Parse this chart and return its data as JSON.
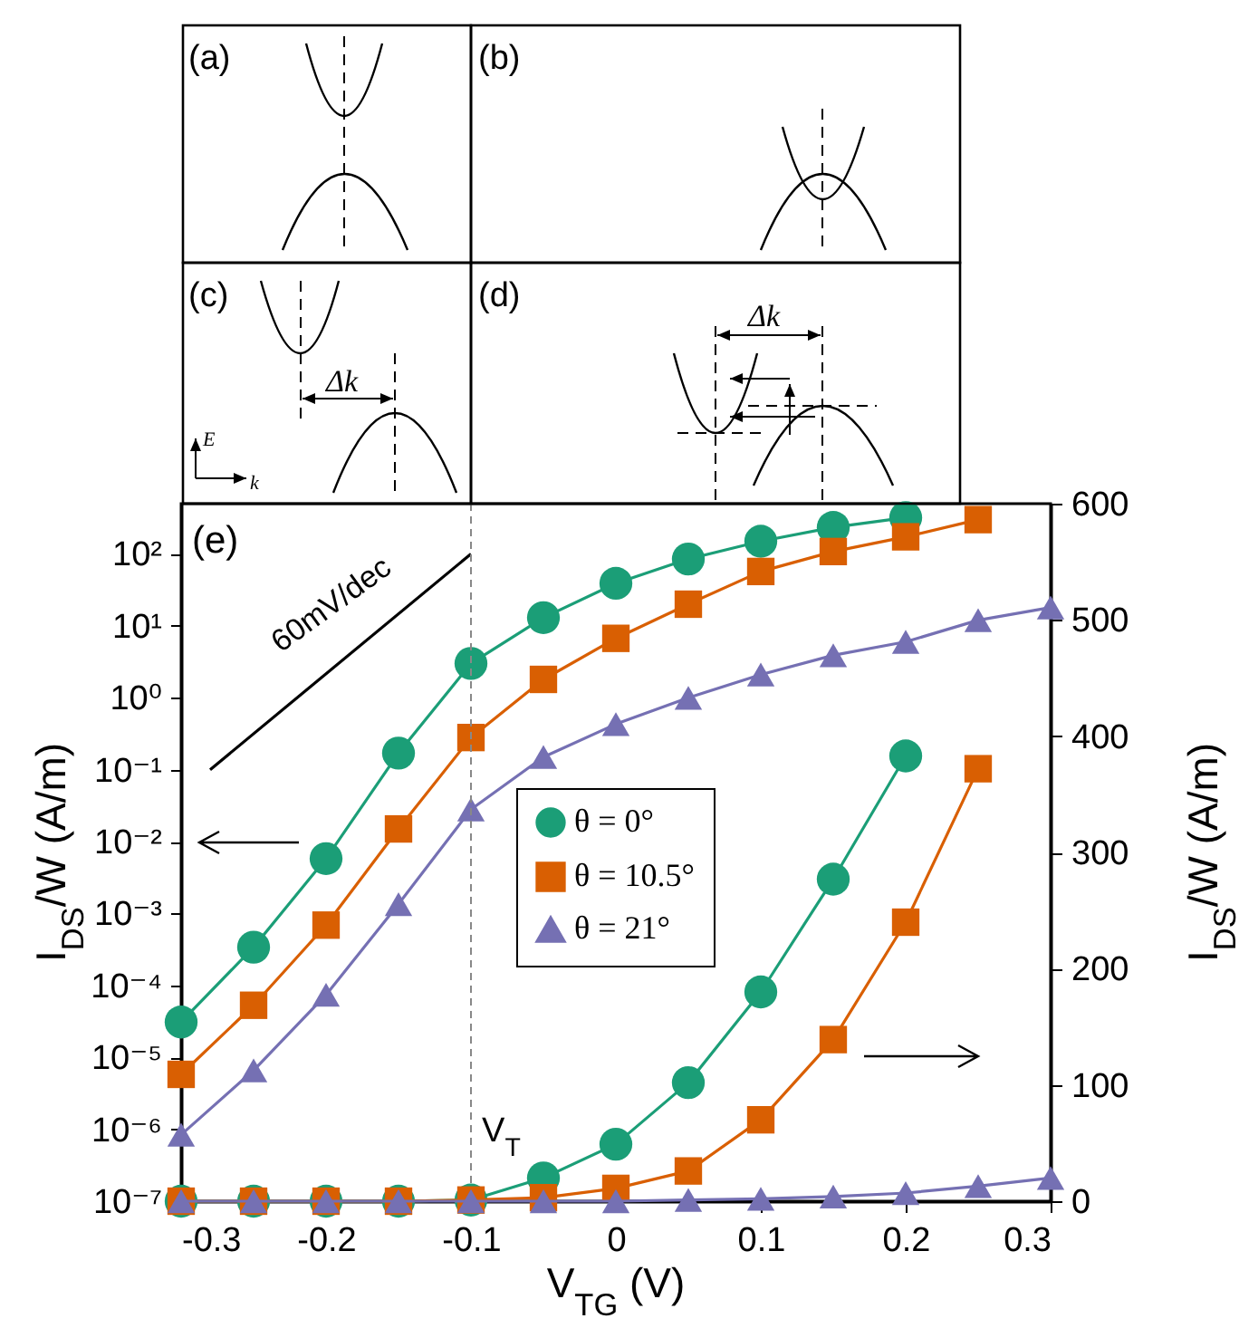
{
  "chart_data": {
    "type": "line",
    "xlabel": "V$_{TG}$ (V)",
    "ylabel": "I$_{DS}$/W (A/m)",
    "y2label": "I$_{DS}$/W (A/m)",
    "x": [
      -0.3,
      -0.25,
      -0.2,
      -0.15,
      -0.1,
      -0.05,
      0,
      0.05,
      0.1,
      0.15,
      0.2,
      0.25,
      0.3
    ],
    "xlim": [
      -0.3,
      0.3
    ],
    "xticks": [
      -0.3,
      -0.2,
      -0.1,
      0,
      0.1,
      0.2,
      0.3
    ],
    "log": "y",
    "ylim": [
      1e-07,
      500
    ],
    "yticks": [
      {
        "value": 1e-07,
        "label": "10⁻⁷"
      },
      {
        "value": 1e-06,
        "label": "10⁻⁶"
      },
      {
        "value": 1e-05,
        "label": "10⁻⁵"
      },
      {
        "value": 0.0001,
        "label": "10⁻⁴"
      },
      {
        "value": 0.001,
        "label": "10⁻³"
      },
      {
        "value": 0.01,
        "label": "10⁻²"
      },
      {
        "value": 0.1,
        "label": "10⁻¹"
      },
      {
        "value": 1,
        "label": "10⁰"
      },
      {
        "value": 10,
        "label": "10¹"
      },
      {
        "value": 100,
        "label": "10²"
      }
    ],
    "y2lim": [
      0,
      600
    ],
    "y2ticks": [
      0,
      100,
      200,
      300,
      400,
      500,
      600
    ],
    "legend": "center",
    "series": [
      {
        "name": "θ = 0°",
        "color": "#1b9e77",
        "marker": "circle",
        "values": [
          3.1e-05,
          0.00034,
          0.0058,
          0.17,
          3.0,
          13,
          39,
          85,
          150,
          234,
          320,
          null,
          null
        ]
      },
      {
        "name": "θ = 10.5°",
        "color": "#d95f02",
        "marker": "square",
        "values": [
          5.8e-06,
          5.3e-05,
          0.00069,
          0.015,
          0.28,
          1.8,
          6.7,
          20,
          57,
          108,
          173,
          300,
          null
        ]
      },
      {
        "name": "θ = 21°",
        "color": "#7570b3",
        "marker": "triangle",
        "values": [
          8.4e-07,
          6.6e-06,
          7.4e-05,
          0.00135,
          0.028,
          0.15,
          0.43,
          1.0,
          2.1,
          3.9,
          6,
          12,
          18
        ]
      },
      {
        "color": "#1b9e77",
        "marker": "circle",
        "axis": "y2",
        "values": [
          0,
          0,
          0,
          0,
          1,
          20,
          49,
          102,
          180,
          277,
          383,
          null,
          null
        ]
      },
      {
        "color": "#d95f02",
        "marker": "square",
        "axis": "y2",
        "values": [
          0,
          0,
          0,
          0,
          1,
          3,
          11,
          26,
          70,
          139,
          240,
          372,
          null
        ]
      },
      {
        "color": "#7570b3",
        "marker": "triangle",
        "axis": "y2",
        "values": [
          0,
          0,
          0,
          0,
          0,
          0,
          0,
          1,
          2,
          4,
          7,
          13,
          20
        ]
      },
      {
        "type": "line",
        "color": "#000000",
        "marker": "none",
        "x": [
          -0.28,
          -0.1
        ],
        "values": [
          0.1,
          100
        ]
      }
    ],
    "ref_lines": [
      {
        "axis": "x",
        "value": -0.1,
        "label": "V$_{T}$",
        "color": "#888888",
        "line_style": "dashed"
      }
    ],
    "annotations": [
      "(a)",
      "(b)",
      "(c)",
      "(d)",
      "Δk",
      "Δk",
      "E",
      "k",
      "(e)",
      "60mV/dec"
    ]
  }
}
